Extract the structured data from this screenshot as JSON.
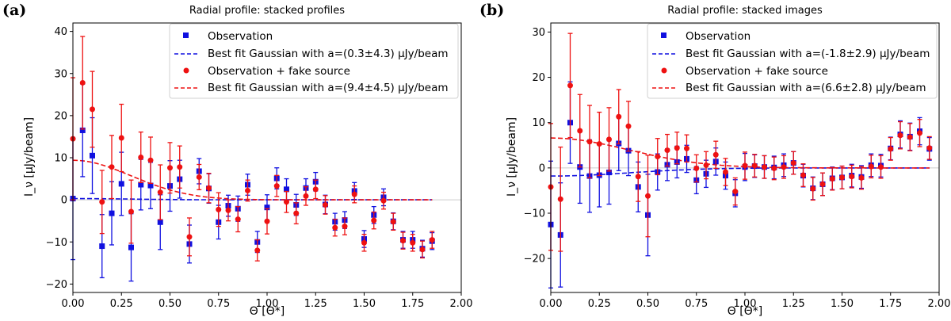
{
  "figure": {
    "panels": [
      {
        "label": "(a)",
        "title": "Radial profile: stacked profiles"
      },
      {
        "label": "(b)",
        "title": "Radial profile: stacked images"
      }
    ]
  },
  "colors": {
    "observation": "#1010e0",
    "fake": "#ee1111",
    "zero_line": "#cccccc"
  },
  "chart_data": [
    {
      "type": "scatter",
      "title": "Radial profile: stacked profiles",
      "xlabel": "Θ [Θ*]",
      "ylabel": "I_ν [μJy/beam]",
      "xlim": [
        0,
        2.0
      ],
      "ylim": [
        -22,
        42
      ],
      "xticks": [
        0,
        0.25,
        0.5,
        0.75,
        1.0,
        1.25,
        1.5,
        1.75,
        2.0
      ],
      "xtick_labels": [
        "0.00",
        "0.25",
        "0.50",
        "0.75",
        "1.00",
        "1.25",
        "1.50",
        "1.75",
        "2.00"
      ],
      "yticks": [
        -20,
        -10,
        0,
        10,
        20,
        30,
        40
      ],
      "ytick_labels": [
        "−20",
        "−10",
        "0",
        "10",
        "20",
        "30",
        "40"
      ],
      "legend_position": "top-right",
      "legend": [
        "Observation",
        "Best fit Gaussian with a=(0.3±4.3) μJy/beam",
        "Observation + fake source",
        "Best fit Gaussian with a=(9.4±4.5) μJy/beam"
      ],
      "series": [
        {
          "name": "Observation",
          "marker": "square",
          "x": [
            0.0,
            0.05,
            0.1,
            0.15,
            0.2,
            0.25,
            0.3,
            0.35,
            0.4,
            0.45,
            0.5,
            0.55,
            0.6,
            0.65,
            0.7,
            0.75,
            0.8,
            0.85,
            0.9,
            0.95,
            1.0,
            1.05,
            1.1,
            1.15,
            1.2,
            1.25,
            1.3,
            1.35,
            1.4,
            1.45,
            1.5,
            1.55,
            1.6,
            1.65,
            1.7,
            1.75,
            1.8,
            1.85
          ],
          "y": [
            0.3,
            16.5,
            10.5,
            -11,
            -3.2,
            3.8,
            -11.3,
            3.6,
            3.4,
            -5.3,
            3.3,
            4.9,
            -10.5,
            6.8,
            2.7,
            -5.3,
            -1.4,
            -2.1,
            3.6,
            -10,
            -1.8,
            5.1,
            2.5,
            -1.2,
            2.8,
            4.3,
            -1.1,
            -5.2,
            -4.8,
            2.1,
            -9.3,
            -3.6,
            0.6,
            -5.1,
            -9.5,
            -9.5,
            -11.6,
            -9.8
          ],
          "err": [
            14.5,
            11,
            9,
            7.5,
            7.5,
            7.5,
            8,
            6,
            5.5,
            6.5,
            6,
            4.5,
            4.5,
            3,
            3.5,
            4,
            2.5,
            3,
            2.5,
            2.5,
            3,
            2.5,
            2.5,
            2.5,
            2.2,
            2.2,
            2.2,
            2,
            2,
            2,
            2,
            2,
            2,
            2,
            2,
            2,
            2,
            2
          ]
        },
        {
          "name": "Observation + fake source",
          "marker": "circle",
          "x": [
            0.0,
            0.05,
            0.1,
            0.15,
            0.2,
            0.25,
            0.3,
            0.35,
            0.4,
            0.45,
            0.5,
            0.55,
            0.6,
            0.65,
            0.7,
            0.75,
            0.8,
            0.85,
            0.9,
            0.95,
            1.0,
            1.05,
            1.1,
            1.15,
            1.2,
            1.25,
            1.3,
            1.35,
            1.4,
            1.45,
            1.5,
            1.55,
            1.6,
            1.65,
            1.7,
            1.75,
            1.8,
            1.85
          ],
          "y": [
            14.5,
            27.8,
            21.5,
            -0.5,
            7.8,
            14.7,
            -2.8,
            10.1,
            9.4,
            1.8,
            7.6,
            7.8,
            -8.8,
            5.4,
            2.8,
            -2.3,
            -2.5,
            -4.6,
            2.2,
            -12,
            -5.1,
            3.3,
            -0.5,
            -3.2,
            0.9,
            2.5,
            -1.2,
            -6.6,
            -6.3,
            1.3,
            -10.2,
            -4.9,
            -0.2,
            -5.2,
            -9.7,
            -10.2,
            -11.8,
            -9.5
          ],
          "err": [
            14.5,
            11,
            9,
            7.5,
            7.5,
            8,
            7.5,
            6,
            5.5,
            6.5,
            6,
            5,
            4.5,
            3,
            3.5,
            4,
            2.5,
            3,
            2.5,
            2.5,
            3,
            2.5,
            2.5,
            2.5,
            2.2,
            2.2,
            2.2,
            2,
            2,
            2,
            2,
            2,
            2,
            2,
            2,
            2,
            2,
            2
          ]
        }
      ],
      "fits": [
        {
          "name": "Best fit Gaussian with a=(0.3±4.3) μJy/beam",
          "amplitude": 0.3,
          "sigma": 0.3,
          "x_max": 1.85
        },
        {
          "name": "Best fit Gaussian with a=(9.4±4.5) μJy/beam",
          "amplitude": 9.4,
          "sigma": 0.3,
          "x_max": 1.85
        }
      ]
    },
    {
      "type": "scatter",
      "title": "Radial profile: stacked images",
      "xlabel": "Θ [Θ*]",
      "ylabel": "I_ν [μJy/beam]",
      "xlim": [
        0,
        2.0
      ],
      "ylim": [
        -27.5,
        32
      ],
      "xticks": [
        0,
        0.25,
        0.5,
        0.75,
        1.0,
        1.25,
        1.5,
        1.75,
        2.0
      ],
      "xtick_labels": [
        "0.00",
        "0.25",
        "0.50",
        "0.75",
        "1.00",
        "1.25",
        "1.50",
        "1.75",
        "2.00"
      ],
      "yticks": [
        -20,
        -10,
        0,
        10,
        20,
        30
      ],
      "ytick_labels": [
        "−20",
        "−10",
        "0",
        "10",
        "20",
        "30"
      ],
      "legend_position": "top-right",
      "legend": [
        "Observation",
        "Best fit Gaussian with a=(-1.8±2.9) μJy/beam",
        "Observation + fake source",
        "Best fit Gaussian with a=(6.6±2.8) μJy/beam"
      ],
      "series": [
        {
          "name": "Observation",
          "marker": "square",
          "x": [
            0.0,
            0.05,
            0.1,
            0.15,
            0.2,
            0.25,
            0.3,
            0.35,
            0.4,
            0.45,
            0.5,
            0.55,
            0.6,
            0.65,
            0.7,
            0.75,
            0.8,
            0.85,
            0.9,
            0.95,
            1.0,
            1.05,
            1.1,
            1.15,
            1.2,
            1.25,
            1.3,
            1.35,
            1.4,
            1.45,
            1.5,
            1.55,
            1.6,
            1.65,
            1.7,
            1.75,
            1.8,
            1.85,
            1.9,
            1.95
          ],
          "y": [
            -12.5,
            -14.8,
            10,
            0.2,
            -1.8,
            -1.6,
            -1,
            5.4,
            3.8,
            -4.2,
            -10.4,
            -0.9,
            0.7,
            1.3,
            2,
            -2.7,
            -1.3,
            1.4,
            -1.7,
            -5.6,
            0.2,
            0.4,
            0.2,
            0.1,
            0.6,
            1.1,
            -1.7,
            -4.5,
            -3.6,
            -2.3,
            -2.1,
            -1.7,
            -2,
            0.6,
            0.5,
            4.3,
            7.4,
            6.9,
            8.1,
            4.2
          ],
          "err": [
            14,
            11.5,
            9,
            8,
            8,
            7,
            7,
            6,
            5.5,
            5.5,
            9,
            4,
            3.5,
            3.5,
            3,
            3,
            3,
            3,
            3,
            3,
            3,
            2.5,
            2.5,
            2.5,
            2.5,
            2.5,
            2.5,
            2.5,
            2.5,
            2.5,
            2.5,
            2.5,
            2.5,
            2.5,
            2.5,
            2.5,
            3,
            3,
            3,
            2.5
          ]
        },
        {
          "name": "Observation + fake source",
          "marker": "circle",
          "x": [
            0.0,
            0.05,
            0.1,
            0.15,
            0.2,
            0.25,
            0.3,
            0.35,
            0.4,
            0.45,
            0.5,
            0.55,
            0.6,
            0.65,
            0.7,
            0.75,
            0.8,
            0.85,
            0.9,
            0.95,
            1.0,
            1.05,
            1.1,
            1.15,
            1.2,
            1.25,
            1.3,
            1.35,
            1.4,
            1.45,
            1.5,
            1.55,
            1.6,
            1.65,
            1.7,
            1.75,
            1.8,
            1.85,
            1.9,
            1.95
          ],
          "y": [
            -4.2,
            -6.9,
            18.2,
            8.2,
            5.8,
            5.3,
            6.3,
            11.3,
            9.2,
            -1.9,
            -6.2,
            2.5,
            3.9,
            4.4,
            4.3,
            -0.1,
            0.6,
            2.9,
            -0.9,
            -5.2,
            0.5,
            0.5,
            0.2,
            -0.1,
            0.2,
            1.1,
            -1.6,
            -4.6,
            -3.6,
            -2.4,
            -2.1,
            -1.9,
            -2.2,
            0.3,
            0.2,
            4.2,
            7.2,
            6.8,
            7.7,
            4.4
          ],
          "err": [
            14,
            11.5,
            11.5,
            8,
            8,
            7,
            7,
            6,
            5.5,
            5.5,
            9,
            4,
            3.5,
            3.5,
            3,
            3,
            3,
            3,
            3,
            3,
            3,
            2.5,
            2.5,
            2.5,
            2.5,
            2.5,
            2.5,
            2.5,
            2.5,
            2.5,
            2.5,
            2.5,
            2.5,
            2.5,
            2.5,
            2.5,
            3,
            3,
            3,
            2.5
          ]
        }
      ],
      "fits": [
        {
          "name": "Best fit Gaussian with a=(-1.8±2.9) μJy/beam",
          "amplitude": -1.8,
          "sigma": 0.4,
          "x_max": 1.95
        },
        {
          "name": "Best fit Gaussian with a=(6.6±2.8) μJy/beam",
          "amplitude": 6.6,
          "sigma": 0.4,
          "x_max": 1.95
        }
      ]
    }
  ]
}
